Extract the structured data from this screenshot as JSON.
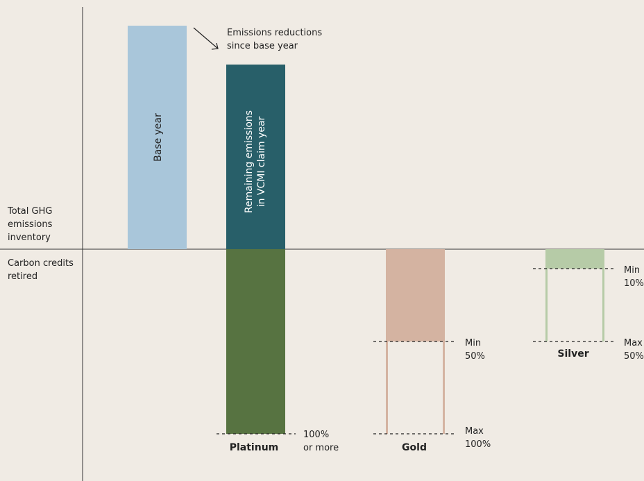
{
  "axis": {
    "upper_label": [
      "Total GHG",
      "emissions",
      "inventory"
    ],
    "lower_label": [
      "Carbon credits",
      "retired"
    ]
  },
  "bars": {
    "base_year": "Base year",
    "remaining": [
      "Remaining emissions",
      "in VCMI claim year"
    ],
    "reductions_annotation": [
      "Emissions reductions",
      "since base year"
    ]
  },
  "tiers": {
    "platinum": {
      "name": "Platinum",
      "marker": [
        "100%",
        "or more"
      ]
    },
    "gold": {
      "name": "Gold",
      "min": [
        "Min",
        "50%"
      ],
      "max": [
        "Max",
        "100%"
      ]
    },
    "silver": {
      "name": "Silver",
      "min": [
        "Min",
        "10%"
      ],
      "max": [
        "Max",
        "50%"
      ]
    }
  },
  "colors": {
    "background": "#f0ebe4",
    "base_year": "#a9c6da",
    "remaining": "#285f69",
    "platinum": "#577341",
    "gold": "#d4b3a1",
    "silver": "#b6cba7"
  }
}
